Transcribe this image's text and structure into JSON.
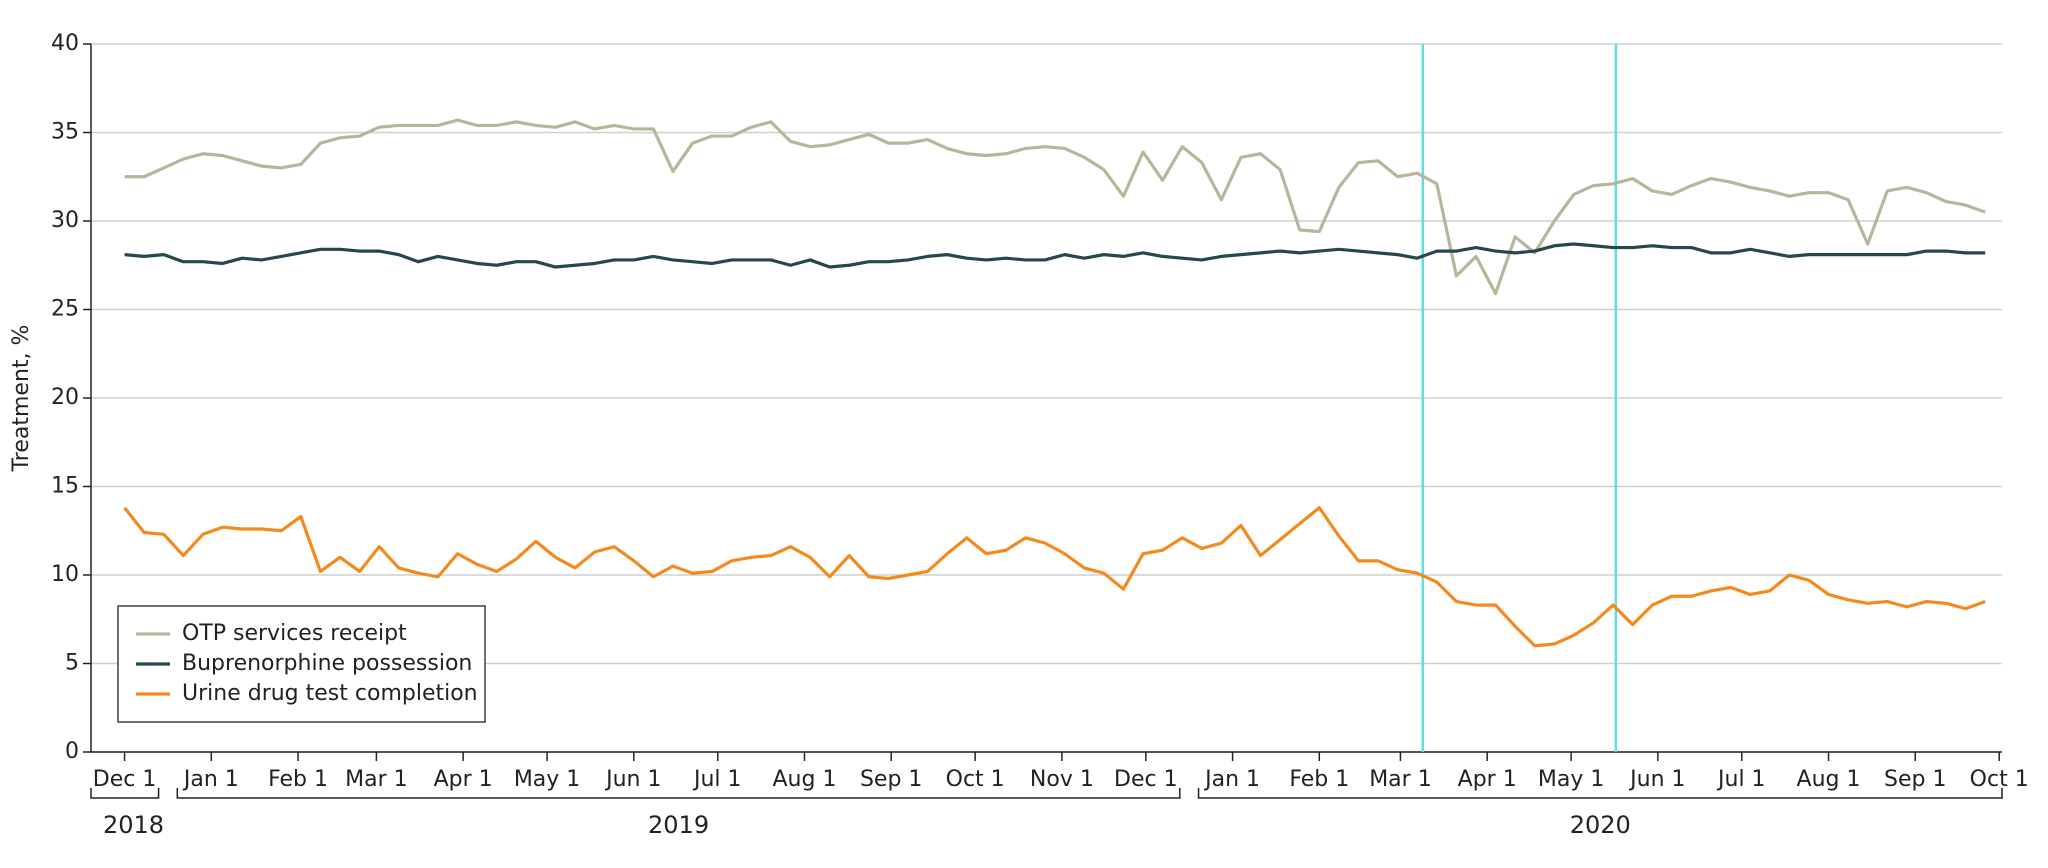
{
  "chart_data": {
    "type": "line",
    "y_label": "Treatment, %",
    "x": [
      "2018-12-01",
      "2018-12-08",
      "2018-12-15",
      "2018-12-22",
      "2018-12-29",
      "2019-01-05",
      "2019-01-12",
      "2019-01-19",
      "2019-01-26",
      "2019-02-02",
      "2019-02-09",
      "2019-02-16",
      "2019-02-23",
      "2019-03-02",
      "2019-03-09",
      "2019-03-16",
      "2019-03-23",
      "2019-03-30",
      "2019-04-06",
      "2019-04-13",
      "2019-04-20",
      "2019-04-27",
      "2019-05-04",
      "2019-05-11",
      "2019-05-18",
      "2019-05-25",
      "2019-06-01",
      "2019-06-08",
      "2019-06-15",
      "2019-06-22",
      "2019-06-29",
      "2019-07-06",
      "2019-07-13",
      "2019-07-20",
      "2019-07-27",
      "2019-08-03",
      "2019-08-10",
      "2019-08-17",
      "2019-08-24",
      "2019-08-31",
      "2019-09-07",
      "2019-09-14",
      "2019-09-21",
      "2019-09-28",
      "2019-10-05",
      "2019-10-12",
      "2019-10-19",
      "2019-10-26",
      "2019-11-02",
      "2019-11-09",
      "2019-11-16",
      "2019-11-23",
      "2019-11-30",
      "2019-12-07",
      "2019-12-14",
      "2019-12-21",
      "2019-12-28",
      "2020-01-04",
      "2020-01-11",
      "2020-01-18",
      "2020-01-25",
      "2020-02-01",
      "2020-02-08",
      "2020-02-15",
      "2020-02-22",
      "2020-02-29",
      "2020-03-07",
      "2020-03-14",
      "2020-03-21",
      "2020-03-28",
      "2020-04-04",
      "2020-04-11",
      "2020-04-18",
      "2020-04-25",
      "2020-05-02",
      "2020-05-09",
      "2020-05-16",
      "2020-05-23",
      "2020-05-30",
      "2020-06-06",
      "2020-06-13",
      "2020-06-20",
      "2020-06-27",
      "2020-07-04",
      "2020-07-11",
      "2020-07-18",
      "2020-07-25",
      "2020-08-01",
      "2020-08-08",
      "2020-08-15",
      "2020-08-22",
      "2020-08-29",
      "2020-09-05",
      "2020-09-12",
      "2020-09-19",
      "2020-09-26"
    ],
    "series": [
      {
        "name": "OTP services receipt",
        "color": "#b7b69b",
        "values": [
          32.5,
          32.5,
          33.0,
          33.5,
          33.8,
          33.7,
          33.4,
          33.1,
          33.0,
          33.2,
          34.4,
          34.7,
          34.8,
          35.3,
          35.4,
          35.4,
          35.4,
          35.7,
          35.4,
          35.4,
          35.6,
          35.4,
          35.3,
          35.6,
          35.2,
          35.4,
          35.2,
          35.2,
          32.8,
          34.4,
          34.8,
          34.8,
          35.3,
          35.6,
          34.5,
          34.2,
          34.3,
          34.6,
          34.9,
          34.4,
          34.4,
          34.6,
          34.1,
          33.8,
          33.7,
          33.8,
          34.1,
          34.2,
          34.1,
          33.6,
          32.9,
          31.4,
          33.9,
          32.3,
          34.2,
          33.3,
          31.2,
          33.6,
          33.8,
          32.9,
          29.5,
          29.4,
          31.9,
          33.3,
          33.4,
          32.5,
          32.7,
          32.1,
          26.9,
          28.0,
          25.9,
          29.1,
          28.2,
          30.0,
          31.5,
          32.0,
          32.1,
          32.4,
          31.7,
          31.5,
          32.0,
          32.4,
          32.2,
          31.9,
          31.7,
          31.4,
          31.6,
          31.6,
          31.2,
          28.7,
          31.7,
          31.9,
          31.6,
          31.1,
          30.9,
          30.5
        ]
      },
      {
        "name": "Buprenorphine possession",
        "color": "#26484c",
        "values": [
          28.1,
          28.0,
          28.1,
          27.7,
          27.7,
          27.6,
          27.9,
          27.8,
          28.0,
          28.2,
          28.4,
          28.4,
          28.3,
          28.3,
          28.1,
          27.7,
          28.0,
          27.8,
          27.6,
          27.5,
          27.7,
          27.7,
          27.4,
          27.5,
          27.6,
          27.8,
          27.8,
          28.0,
          27.8,
          27.7,
          27.6,
          27.8,
          27.8,
          27.8,
          27.5,
          27.8,
          27.4,
          27.5,
          27.7,
          27.7,
          27.8,
          28.0,
          28.1,
          27.9,
          27.8,
          27.9,
          27.8,
          27.8,
          28.1,
          27.9,
          28.1,
          28.0,
          28.2,
          28.0,
          27.9,
          27.8,
          28.0,
          28.1,
          28.2,
          28.3,
          28.2,
          28.3,
          28.4,
          28.3,
          28.2,
          28.1,
          27.9,
          28.3,
          28.3,
          28.5,
          28.3,
          28.2,
          28.3,
          28.6,
          28.7,
          28.6,
          28.5,
          28.5,
          28.6,
          28.5,
          28.5,
          28.2,
          28.2,
          28.4,
          28.2,
          28.0,
          28.1,
          28.1,
          28.1,
          28.1,
          28.1,
          28.1,
          28.3,
          28.3,
          28.2,
          28.2
        ]
      },
      {
        "name": "Urine drug test completion",
        "color": "#f28a1e",
        "values": [
          13.8,
          12.4,
          12.3,
          11.1,
          12.3,
          12.7,
          12.6,
          12.6,
          12.5,
          13.3,
          10.2,
          11.0,
          10.2,
          11.6,
          10.4,
          10.1,
          9.9,
          11.2,
          10.6,
          10.2,
          10.9,
          11.9,
          11.0,
          10.4,
          11.3,
          11.6,
          10.8,
          9.9,
          10.5,
          10.1,
          10.2,
          10.8,
          11.0,
          11.1,
          11.6,
          11.0,
          9.9,
          11.1,
          9.9,
          9.8,
          10.0,
          10.2,
          11.2,
          12.1,
          11.2,
          11.4,
          12.1,
          11.8,
          11.2,
          10.4,
          10.1,
          9.2,
          11.2,
          11.4,
          12.1,
          11.5,
          11.8,
          12.8,
          11.1,
          12.0,
          12.9,
          13.8,
          12.2,
          10.8,
          10.8,
          10.3,
          10.1,
          9.6,
          8.5,
          8.3,
          8.3,
          7.1,
          6.0,
          6.1,
          6.6,
          7.3,
          8.3,
          7.2,
          8.3,
          8.8,
          8.8,
          9.1,
          9.3,
          8.9,
          9.1,
          10.0,
          9.7,
          8.9,
          8.6,
          8.4,
          8.5,
          8.2,
          8.5,
          8.4,
          8.1,
          8.5
        ]
      }
    ],
    "xlim": [
      "2018-11-19",
      "2020-10-02"
    ],
    "xticks": [
      {
        "value": "2018-12-01",
        "label": "Dec 1"
      },
      {
        "value": "2019-01-01",
        "label": "Jan 1"
      },
      {
        "value": "2019-02-01",
        "label": "Feb 1"
      },
      {
        "value": "2019-03-01",
        "label": "Mar 1"
      },
      {
        "value": "2019-04-01",
        "label": "Apr 1"
      },
      {
        "value": "2019-05-01",
        "label": "May 1"
      },
      {
        "value": "2019-06-01",
        "label": "Jun 1"
      },
      {
        "value": "2019-07-01",
        "label": "Jul 1"
      },
      {
        "value": "2019-08-01",
        "label": "Aug 1"
      },
      {
        "value": "2019-09-01",
        "label": "Sep 1"
      },
      {
        "value": "2019-10-01",
        "label": "Oct 1"
      },
      {
        "value": "2019-11-01",
        "label": "Nov 1"
      },
      {
        "value": "2019-12-01",
        "label": "Dec 1"
      },
      {
        "value": "2020-01-01",
        "label": "Jan 1"
      },
      {
        "value": "2020-02-01",
        "label": "Feb 1"
      },
      {
        "value": "2020-03-01",
        "label": "Mar 1"
      },
      {
        "value": "2020-04-01",
        "label": "Apr 1"
      },
      {
        "value": "2020-05-01",
        "label": "May 1"
      },
      {
        "value": "2020-06-01",
        "label": "Jun 1"
      },
      {
        "value": "2020-07-01",
        "label": "Jul 1"
      },
      {
        "value": "2020-08-01",
        "label": "Aug 1"
      },
      {
        "value": "2020-09-01",
        "label": "Sep 1"
      },
      {
        "value": "2020-10-01",
        "label": "Oct 1"
      }
    ],
    "year_labels": [
      "2018",
      "2019",
      "2020"
    ],
    "ylim": [
      0,
      40
    ],
    "yticks": [
      0,
      5,
      10,
      15,
      20,
      25,
      30,
      35,
      40
    ],
    "grid": true,
    "vlines": [
      "2020-03-09",
      "2020-05-17"
    ],
    "vline_color": "#5ddfe2",
    "legend": "lower left"
  }
}
